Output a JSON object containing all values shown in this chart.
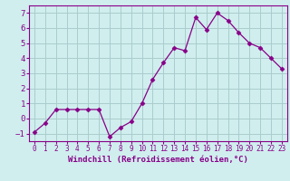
{
  "x": [
    0,
    1,
    2,
    3,
    4,
    5,
    6,
    7,
    8,
    9,
    10,
    11,
    12,
    13,
    14,
    15,
    16,
    17,
    18,
    19,
    20,
    21,
    22,
    23
  ],
  "y": [
    -0.9,
    -0.3,
    0.6,
    0.6,
    0.6,
    0.6,
    0.6,
    -1.2,
    -0.6,
    -0.2,
    1.0,
    2.6,
    3.7,
    4.7,
    4.5,
    6.7,
    5.9,
    7.0,
    6.5,
    5.7,
    5.0,
    4.7,
    4.0,
    3.3
  ],
  "line_color": "#880088",
  "marker": "D",
  "marker_size": 2.5,
  "bg_color": "#d0eeee",
  "grid_color": "#aacccc",
  "xlabel": "Windchill (Refroidissement éolien,°C)",
  "label_color": "#880088",
  "ylim": [
    -1.5,
    7.5
  ],
  "xlim": [
    -0.5,
    23.5
  ],
  "yticks": [
    -1,
    0,
    1,
    2,
    3,
    4,
    5,
    6,
    7
  ],
  "xtick_labels": [
    "0",
    "1",
    "2",
    "3",
    "4",
    "5",
    "6",
    "7",
    "8",
    "9",
    "10",
    "11",
    "12",
    "13",
    "14",
    "15",
    "16",
    "17",
    "18",
    "19",
    "20",
    "21",
    "22",
    "23"
  ]
}
